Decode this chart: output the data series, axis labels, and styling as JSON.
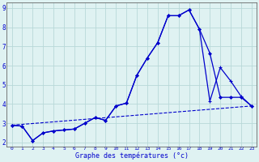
{
  "xlabel": "Graphe des températures (°c)",
  "background_color": "#dff2f2",
  "grid_color": "#b8d8d8",
  "line_color": "#0000cc",
  "xlim": [
    -0.5,
    23.5
  ],
  "ylim": [
    1.8,
    9.3
  ],
  "xticks": [
    0,
    1,
    2,
    3,
    4,
    5,
    6,
    7,
    8,
    9,
    10,
    11,
    12,
    13,
    14,
    15,
    16,
    17,
    18,
    19,
    20,
    21,
    22,
    23
  ],
  "yticks": [
    2,
    3,
    4,
    5,
    6,
    7,
    8,
    9
  ],
  "line1_x": [
    0,
    1,
    2,
    3,
    4,
    5,
    6,
    7,
    8,
    9,
    10,
    11,
    12,
    13,
    14,
    15,
    16,
    17,
    18,
    19,
    20,
    21,
    22,
    23
  ],
  "line1_y": [
    2.9,
    2.85,
    2.1,
    2.5,
    2.6,
    2.65,
    2.7,
    3.0,
    3.3,
    3.15,
    3.9,
    4.05,
    5.5,
    6.4,
    7.2,
    8.6,
    8.6,
    8.9,
    7.9,
    6.65,
    4.35,
    4.35,
    4.35,
    3.9
  ],
  "line2_x": [
    0,
    1,
    2,
    3,
    4,
    5,
    6,
    7,
    8,
    9,
    10,
    11,
    12,
    13,
    14,
    15,
    16,
    17,
    18,
    19,
    20,
    21,
    22,
    23
  ],
  "line2_y": [
    2.9,
    2.85,
    2.1,
    2.5,
    2.6,
    2.65,
    2.7,
    3.0,
    3.3,
    3.15,
    3.9,
    4.05,
    5.5,
    6.4,
    7.2,
    8.6,
    8.6,
    8.9,
    7.9,
    4.15,
    5.9,
    5.2,
    4.4,
    3.9
  ],
  "line3_x": [
    0,
    23
  ],
  "line3_y": [
    2.9,
    3.9
  ]
}
